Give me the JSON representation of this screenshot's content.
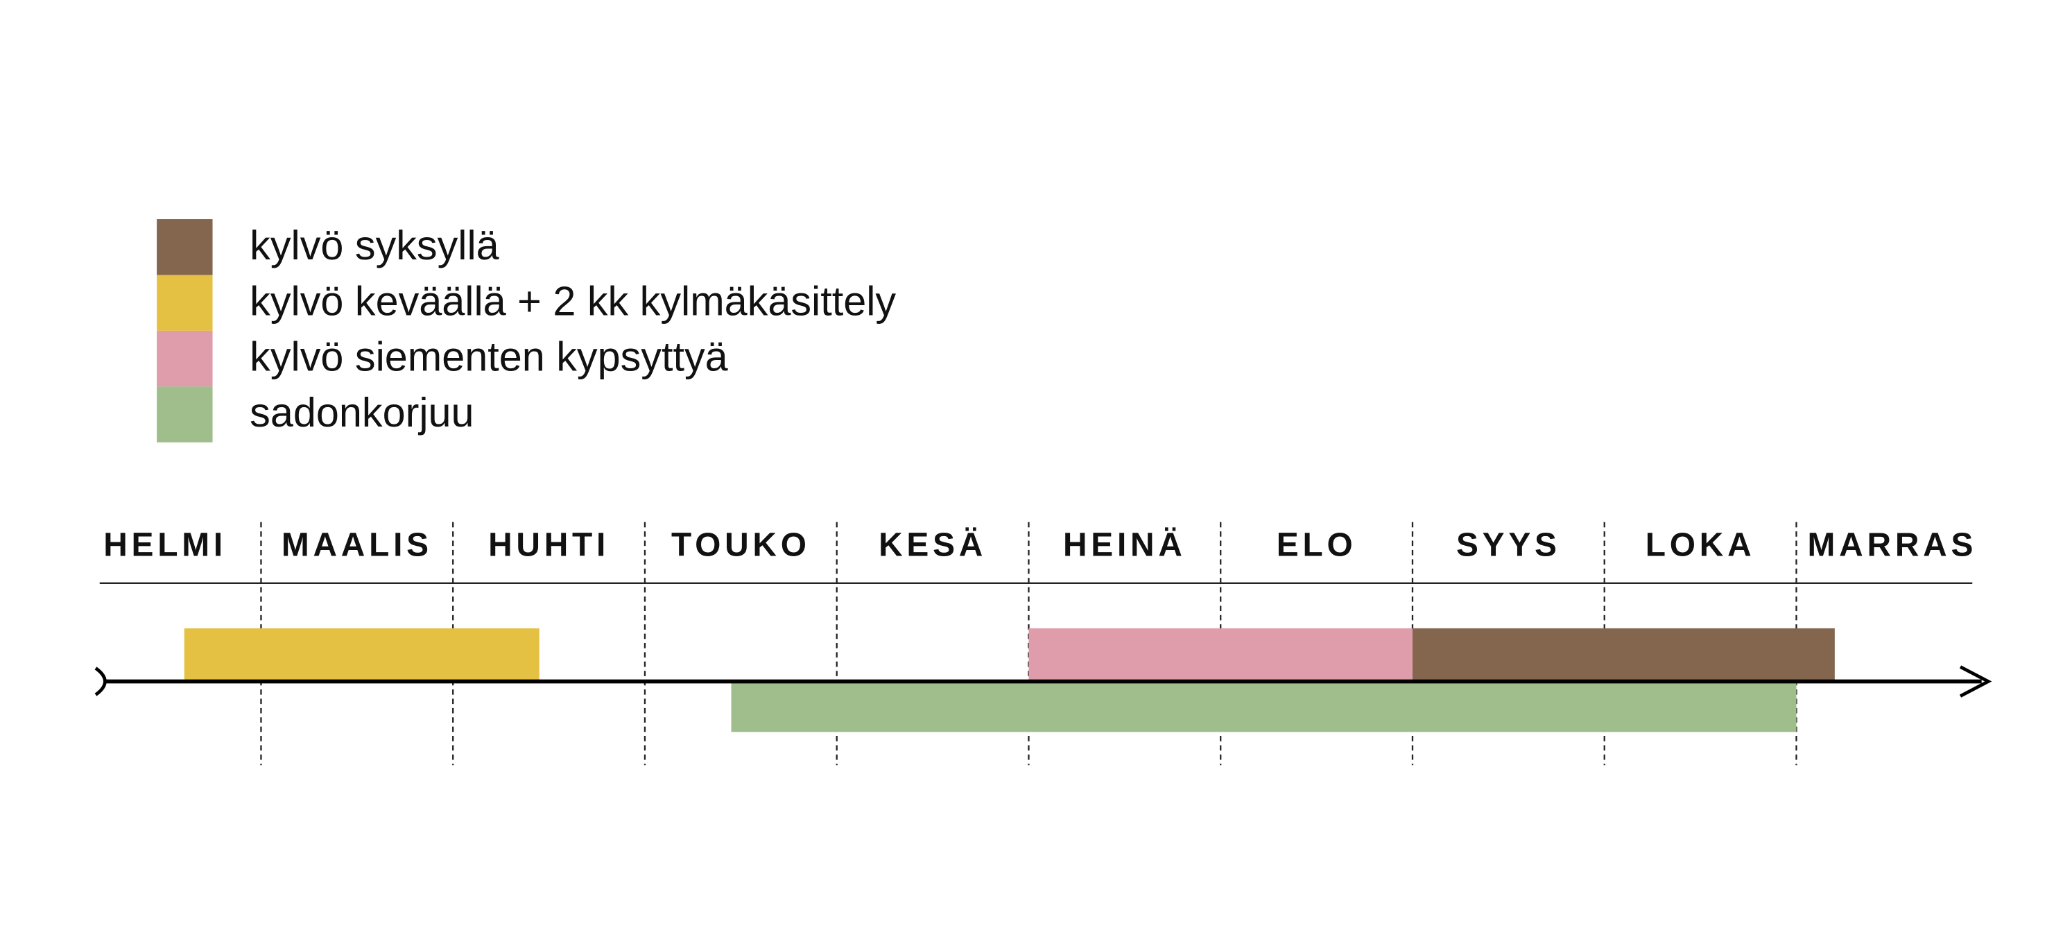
{
  "chart_data": {
    "type": "gantt",
    "categories": [
      "HELMI",
      "MAALIS",
      "HUHTI",
      "TOUKO",
      "KESÄ",
      "HEINÄ",
      "ELO",
      "SYYS",
      "LOKA",
      "MARRAS"
    ],
    "xlim": [
      0,
      10
    ],
    "series": [
      {
        "name": "kylvö syksyllä",
        "color": "#84664f",
        "start": 7.0,
        "end": 9.2
      },
      {
        "name": "kylvö keväällä + 2 kk kylmäkäsittely",
        "color": "#e5c143",
        "start": 0.6,
        "end": 2.45
      },
      {
        "name": "kylvö siementen kypsyttyä",
        "color": "#df9caa",
        "start": 5.0,
        "end": 7.0
      },
      {
        "name": "sadonkorjuu",
        "color": "#a0be8c",
        "start": 3.45,
        "end": 9.0
      }
    ]
  }
}
